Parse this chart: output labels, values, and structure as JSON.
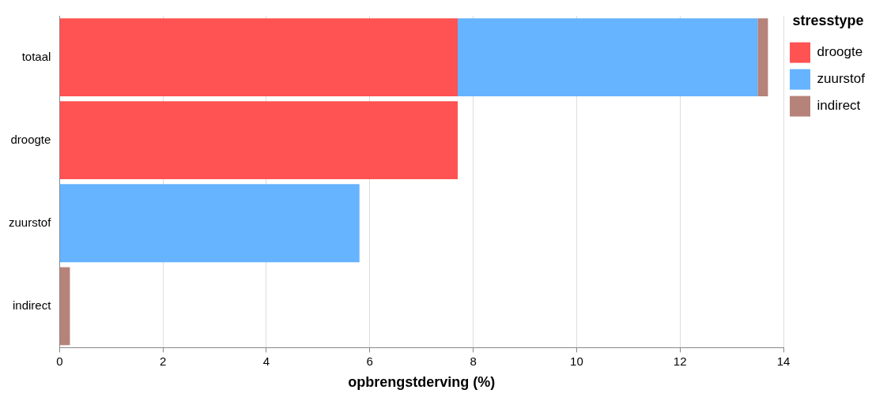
{
  "chart_data": {
    "type": "bar",
    "orientation": "horizontal",
    "stacked": true,
    "xlabel": "opbrengstderving (%)",
    "legend_title": "stresstype",
    "categories": [
      "totaal",
      "droogte",
      "zuurstof",
      "indirect"
    ],
    "series": [
      {
        "name": "droogte",
        "color": "#ff5252",
        "values": [
          7.7,
          7.7,
          null,
          null
        ]
      },
      {
        "name": "zuurstof",
        "color": "#66b3ff",
        "values": [
          5.8,
          null,
          5.8,
          null
        ]
      },
      {
        "name": "indirect",
        "color": "#b5837a",
        "values": [
          0.2,
          null,
          null,
          0.2
        ]
      }
    ],
    "xlim": [
      0,
      14
    ],
    "xticks": [
      0,
      2,
      4,
      6,
      8,
      10,
      12,
      14
    ],
    "grid": "x",
    "legend": "top right"
  }
}
